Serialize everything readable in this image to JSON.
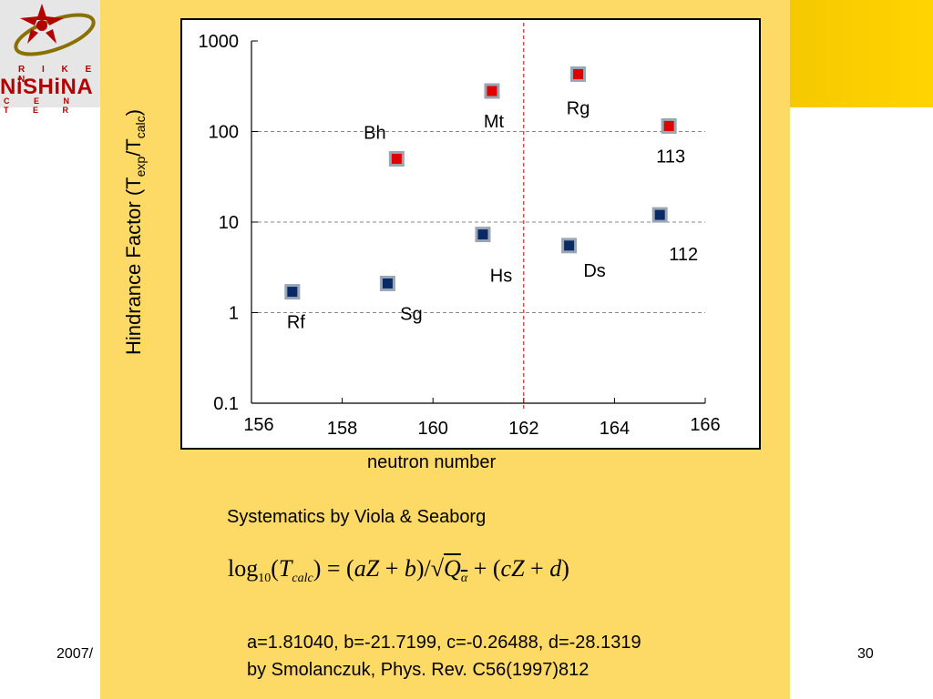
{
  "header": {
    "logo": {
      "line1": "R I K E N",
      "line2": "NiSHiNA",
      "line3": "C E N T E R",
      "colors": {
        "primary": "#b30000",
        "ring": "#8a7000"
      }
    }
  },
  "chart_data": {
    "type": "scatter",
    "yscale": "log",
    "xlabel": "neutron number",
    "ylabel_main": "Hindrance Factor (T",
    "ylabel_sub1": "exp",
    "ylabel_mid": "/T",
    "ylabel_sub2": "calc",
    "ylabel_end": ")",
    "xlim": [
      156,
      166
    ],
    "ylim": [
      0.1,
      1000
    ],
    "x_ticks": [
      {
        "value": 156,
        "label": "156"
      },
      {
        "value": 158,
        "label": "158"
      },
      {
        "value": 160,
        "label": "160"
      },
      {
        "value": 162,
        "label": "162"
      },
      {
        "value": 164,
        "label": "164"
      },
      {
        "value": 166,
        "label": "166"
      }
    ],
    "y_ticks": [
      {
        "value": 0.1,
        "label": "0.1"
      },
      {
        "value": 1,
        "label": "1"
      },
      {
        "value": 10,
        "label": "10"
      },
      {
        "value": 100,
        "label": "100"
      },
      {
        "value": 1000,
        "label": "1000"
      }
    ],
    "grid": "horizontal dashed",
    "reference_line": {
      "x": 162,
      "style": "dashed",
      "color": "#d00000"
    },
    "series": [
      {
        "color": "#0a2a66",
        "points": [
          {
            "label": "Rf",
            "x": 156.9,
            "y": 1.7
          },
          {
            "label": "Sg",
            "x": 159.0,
            "y": 2.1
          },
          {
            "label": "Hs",
            "x": 161.1,
            "y": 7.3
          },
          {
            "label": "Ds",
            "x": 163.0,
            "y": 5.5
          },
          {
            "label": "112",
            "x": 165.0,
            "y": 12
          }
        ]
      },
      {
        "color": "#e00000",
        "points": [
          {
            "label": "Bh",
            "x": 159.2,
            "y": 50
          },
          {
            "label": "Mt",
            "x": 161.3,
            "y": 280
          },
          {
            "label": "Rg",
            "x": 163.2,
            "y": 430
          },
          {
            "label": "113",
            "x": 165.2,
            "y": 115
          }
        ]
      }
    ]
  },
  "systematics": {
    "title": "Systematics by Viola & Seaborg",
    "formula": {
      "log": "log",
      "base": "10",
      "T": "T",
      "calc": "calc",
      "eq": "=",
      "aZ": "aZ",
      "plus": "+",
      "b": "b",
      "Q": "Q",
      "alpha": "α",
      "cZ": "cZ",
      "d": "d"
    },
    "params": "a=1.81040, b=-21.7199, c=-0.26488, d=-28.1319",
    "reference": "by Smolanczuk, Phys. Rev. C56(1997)812"
  },
  "footer": {
    "date_fragment": "2007/",
    "page_number": "30"
  }
}
